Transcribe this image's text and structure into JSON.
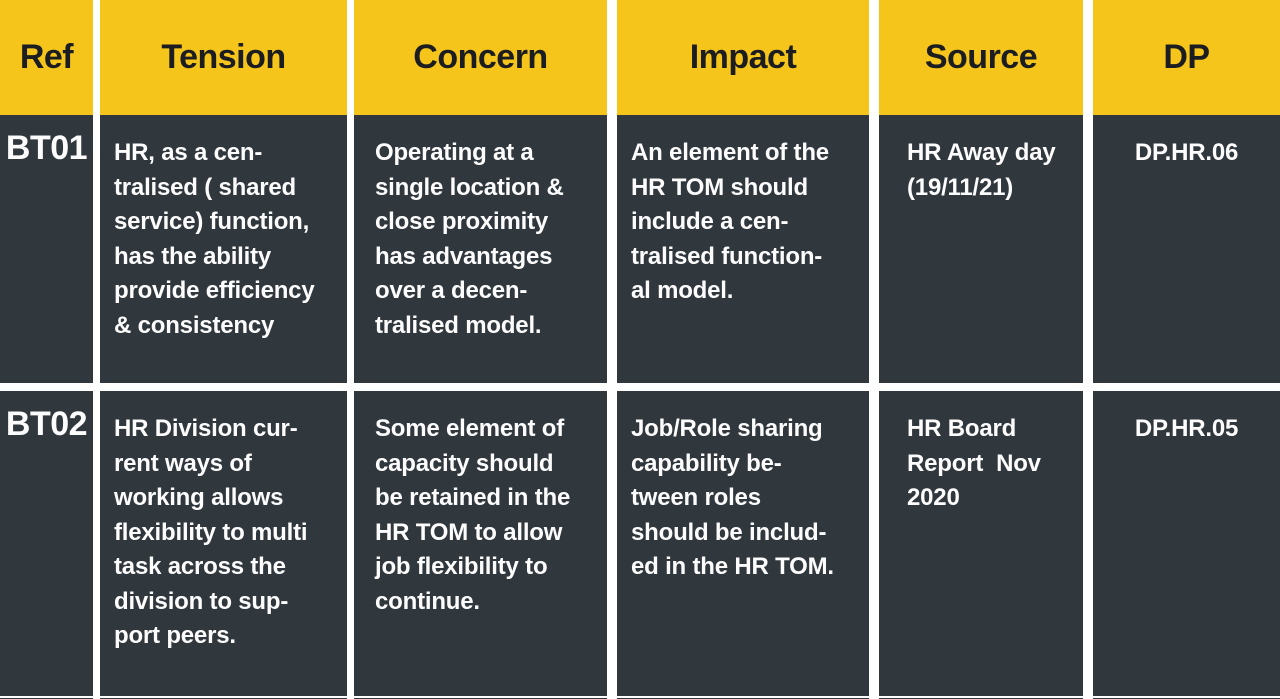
{
  "header": {
    "ref": "Ref",
    "tension": "Tension",
    "concern": "Concern",
    "impact": "Impact",
    "source": "Source",
    "dp": "DP"
  },
  "rows": [
    {
      "ref": "BT01",
      "tension": "HR, as a cen-\ntralised ( shared\nservice) function,\nhas the ability\nprovide efficiency\n& consistency",
      "concern": "Operating at a\nsingle location &\nclose proximity\nhas advantages\nover a decen-\ntralised model.",
      "impact": "An element of the\nHR TOM should\ninclude a cen-\ntralised function-\nal model.",
      "source": "HR Away day\n(19/11/21)",
      "dp": "DP.HR.06"
    },
    {
      "ref": "BT02",
      "tension": "HR Division cur-\nrent ways of\nworking allows\nflexibility to multi\ntask across the\ndivision to sup-\nport peers.",
      "concern": "Some element of\ncapacity should\nbe retained in the\nHR TOM to allow\njob flexibility to\ncontinue.",
      "impact": "Job/Role sharing\ncapability be-\ntween roles\nshould be includ-\ned in the HR TOM.",
      "source": "HR Board\nReport  Nov\n2020",
      "dp": "DP.HR.05"
    }
  ],
  "colors": {
    "header_bg": "#F6C51B",
    "body_cell_bg": "#30373D",
    "divider": "#FFFFFF",
    "header_text": "#1B1D21",
    "body_text": "#FCFCFC"
  }
}
